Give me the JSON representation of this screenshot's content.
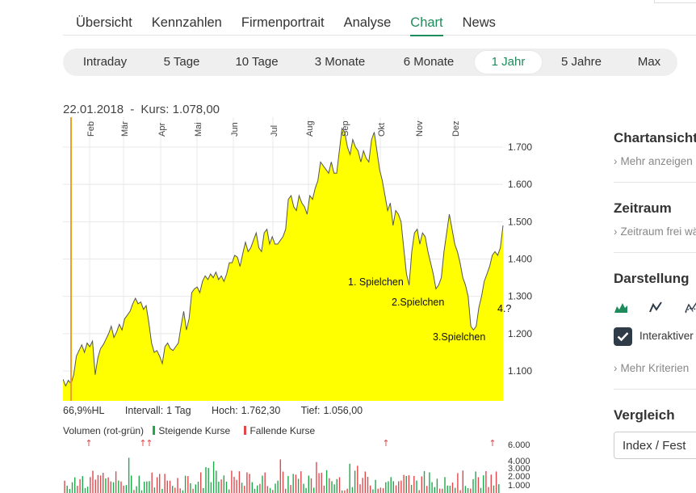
{
  "nav": {
    "tabs": [
      {
        "label": "Übersicht"
      },
      {
        "label": "Kennzahlen"
      },
      {
        "label": "Firmenportrait"
      },
      {
        "label": "Analyse"
      },
      {
        "label": "Chart"
      },
      {
        "label": "News"
      }
    ],
    "active": "Chart"
  },
  "ranges": {
    "items": [
      {
        "label": "Intraday"
      },
      {
        "label": "5 Tage"
      },
      {
        "label": "10 Tage"
      },
      {
        "label": "3 Monate"
      },
      {
        "label": "6 Monate"
      },
      {
        "label": "1 Jahr"
      },
      {
        "label": "5 Jahre"
      },
      {
        "label": "Max"
      }
    ],
    "active": "1 Jahr"
  },
  "chart_header": {
    "date": "22.01.2018",
    "separator": "-",
    "kurs_label": "Kurs:",
    "kurs_value": "1.078,00"
  },
  "stats": {
    "hl": "66,9%HL",
    "interval_label": "Intervall:",
    "interval_value": "1 Tag",
    "high_label": "Hoch:",
    "high_value": "1.762,30",
    "low_label": "Tief:",
    "low_value": "1.056,00"
  },
  "volume_legend": {
    "title": "Volumen (rot-grün)",
    "rising": "Steigende Kurse",
    "falling": "Fallende Kurse"
  },
  "sidebar": {
    "chartansicht": "Chartansicht",
    "mehr_anzeigen": "Mehr anzeigen",
    "zeitraum": "Zeitraum",
    "zeitraum_frei": "Zeitraum frei wählen",
    "darstellung": "Darstellung",
    "interaktiv_label": "Interaktiver Chart",
    "mehr_kriterien": "Mehr Kriterien",
    "vergleich": "Vergleich",
    "index_select": "Index / Fest",
    "chevron": "›",
    "icons": [
      "area-chart-icon",
      "line-chart-icon",
      "mountain-line-icon"
    ]
  },
  "chart_data": {
    "type": "area",
    "months": [
      "Feb",
      "Mär",
      "Apr",
      "Mai",
      "Jun",
      "Jul",
      "Aug",
      "Sep",
      "Okt",
      "Nov",
      "Dez"
    ],
    "y_ticks": [
      "1.700",
      "1.600",
      "1.500",
      "1.400",
      "1.300",
      "1.200",
      "1.100"
    ],
    "ylim": [
      1020,
      1780
    ],
    "fill_color": "#ffff00",
    "line_color": "#555555",
    "marker_color": "#f0a020",
    "annotations": [
      "1. Spielchen",
      "2.Spielchen",
      "3.Spielchen",
      "4.?"
    ],
    "series": [
      {
        "values": [
          1078,
          1060,
          1075,
          1066,
          1090,
          1140,
          1155,
          1170,
          1150,
          1175,
          1165,
          1180,
          1090,
          1135,
          1160,
          1170,
          1185,
          1200,
          1220,
          1190,
          1205,
          1225,
          1210,
          1240,
          1250,
          1260,
          1280,
          1295,
          1280,
          1285,
          1265,
          1275,
          1230,
          1175,
          1150,
          1155,
          1140,
          1120,
          1165,
          1175,
          1160,
          1155,
          1165,
          1175,
          1220,
          1260,
          1210,
          1240,
          1310,
          1320,
          1325,
          1310,
          1340,
          1355,
          1345,
          1360,
          1350,
          1365,
          1345,
          1355,
          1340,
          1360,
          1390,
          1390,
          1410,
          1405,
          1380,
          1415,
          1445,
          1420,
          1430,
          1450,
          1470,
          1430,
          1420,
          1470,
          1480,
          1440,
          1460,
          1440,
          1440,
          1450,
          1460,
          1480,
          1560,
          1570,
          1540,
          1530,
          1570,
          1550,
          1540,
          1520,
          1570,
          1560,
          1590,
          1610,
          1660,
          1650,
          1640,
          1630,
          1660,
          1630,
          1630,
          1690,
          1750,
          1740,
          1700,
          1680,
          1720,
          1700,
          1690,
          1660,
          1690,
          1670,
          1660,
          1720,
          1740,
          1690,
          1640,
          1610,
          1570,
          1530,
          1550,
          1490,
          1530,
          1520,
          1500,
          1430,
          1360,
          1330,
          1420,
          1470,
          1480,
          1440,
          1470,
          1460,
          1420,
          1390,
          1360,
          1320,
          1330,
          1350,
          1420,
          1470,
          1520,
          1480,
          1440,
          1420,
          1390,
          1350,
          1330,
          1300,
          1220,
          1210,
          1220,
          1270,
          1300,
          1340,
          1360,
          1380,
          1410,
          1420,
          1410,
          1430,
          1490
        ]
      }
    ]
  },
  "volume_data": {
    "y_ticks": [
      "6.000",
      "4.000",
      "3.000",
      "2.000",
      "1.000"
    ],
    "ylim": [
      0,
      6200
    ],
    "rising_color": "#1fa84a",
    "falling_color": "#e2474c",
    "spike_markers": [
      "↑",
      "↑",
      "↑",
      "↑",
      "↑"
    ]
  }
}
